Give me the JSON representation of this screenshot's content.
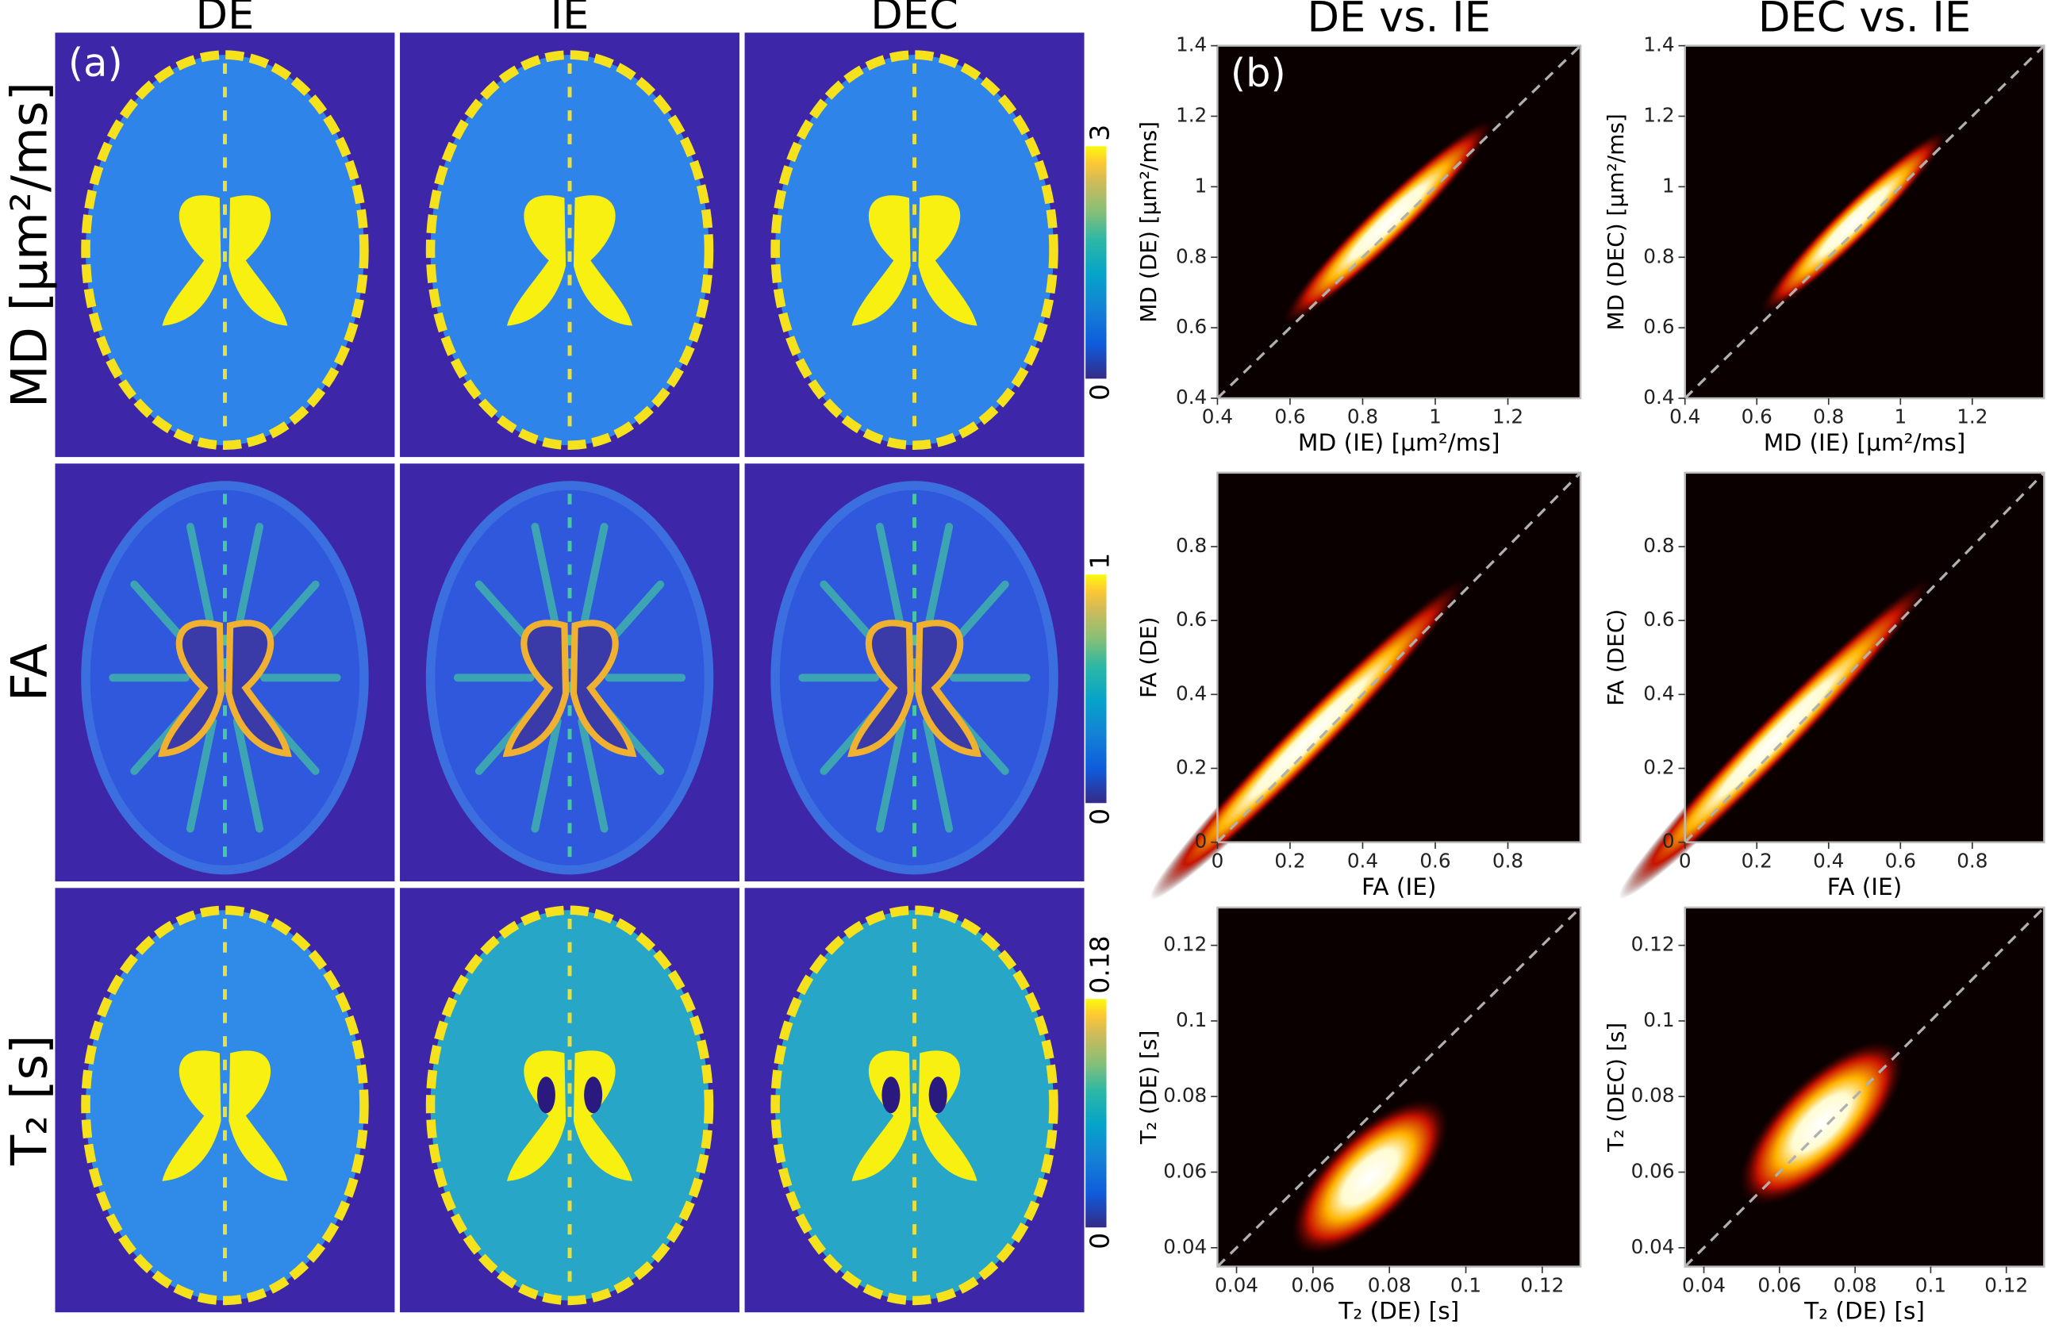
{
  "panel_a": {
    "label": "(a)",
    "columns": [
      "DE",
      "IE",
      "DEC"
    ],
    "rows": [
      {
        "label": "MD [μm²/ms]",
        "colorbar": {
          "min": 0,
          "max": 3
        }
      },
      {
        "label": "FA",
        "colorbar": {
          "min": 0,
          "max": 1
        }
      },
      {
        "label": "T₂ [s]",
        "colorbar": {
          "min": 0,
          "max": 0.18
        }
      }
    ]
  },
  "panel_b": {
    "label": "(b)",
    "columns": [
      "DE vs. IE",
      "DEC vs. IE"
    ],
    "plots": [
      [
        {
          "xlabel": "MD (IE) [μm²/ms]",
          "ylabel": "MD (DE) [μm²/ms]",
          "xlim": [
            0.4,
            1.4
          ],
          "ylim": [
            0.4,
            1.4
          ],
          "xticks": [
            0.4,
            0.6,
            0.8,
            1,
            1.2
          ],
          "yticks": [
            0.4,
            0.6,
            0.8,
            1,
            1.2,
            1.4
          ]
        },
        {
          "xlabel": "MD (IE) [μm²/ms]",
          "ylabel": "MD (DEC) [μm²/ms]",
          "xlim": [
            0.4,
            1.4
          ],
          "ylim": [
            0.4,
            1.4
          ],
          "xticks": [
            0.4,
            0.6,
            0.8,
            1,
            1.2
          ],
          "yticks": [
            0.4,
            0.6,
            0.8,
            1,
            1.2,
            1.4
          ]
        }
      ],
      [
        {
          "xlabel": "FA (IE)",
          "ylabel": "FA (DE)",
          "xlim": [
            0,
            1
          ],
          "ylim": [
            0,
            1
          ],
          "xticks": [
            0,
            0.2,
            0.4,
            0.6,
            0.8
          ],
          "yticks": [
            0,
            0.2,
            0.4,
            0.6,
            0.8
          ]
        },
        {
          "xlabel": "FA (IE)",
          "ylabel": "FA (DEC)",
          "xlim": [
            0,
            1
          ],
          "ylim": [
            0,
            1
          ],
          "xticks": [
            0,
            0.2,
            0.4,
            0.6,
            0.8
          ],
          "yticks": [
            0,
            0.2,
            0.4,
            0.6,
            0.8
          ]
        }
      ],
      [
        {
          "xlabel": "T₂ (DE) [s]",
          "ylabel": "T₂ (DE) [s]",
          "xlim": [
            0.035,
            0.13
          ],
          "ylim": [
            0.035,
            0.13
          ],
          "xticks": [
            0.04,
            0.06,
            0.08,
            0.1,
            0.12
          ],
          "yticks": [
            0.04,
            0.06,
            0.08,
            0.1,
            0.12
          ]
        },
        {
          "xlabel": "T₂ (DE) [s]",
          "ylabel": "T₂ (DEC) [s]",
          "xlim": [
            0.035,
            0.13
          ],
          "ylim": [
            0.035,
            0.13
          ],
          "xticks": [
            0.04,
            0.06,
            0.08,
            0.1,
            0.12
          ],
          "yticks": [
            0.04,
            0.06,
            0.08,
            0.1,
            0.12
          ]
        }
      ]
    ]
  }
}
